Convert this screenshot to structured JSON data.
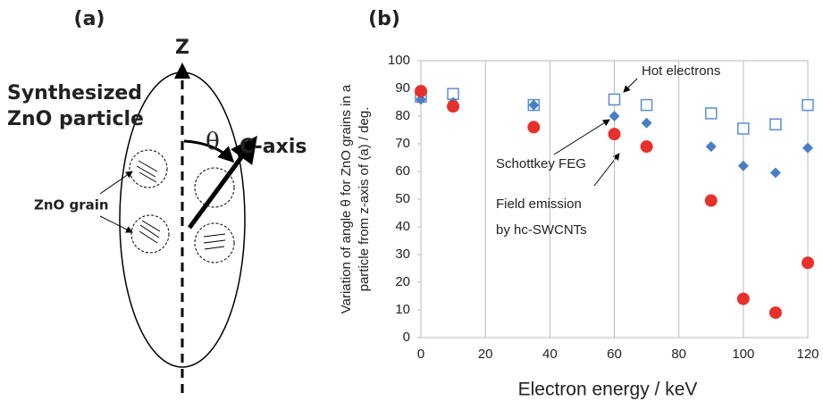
{
  "diagram": {
    "panel_label": "(a)",
    "z_label": "Z",
    "particle_label": [
      "Synthesized",
      "ZnO particle"
    ],
    "angle_label": "θ",
    "axis_label": "C-axis",
    "grain_label": "ZnO grain"
  },
  "chart_data": {
    "type": "scatter",
    "panel_label": "(b)",
    "xlabel": "Electron energy / keV",
    "ylabel": [
      "Variation of angle θ for ZnO grains in a",
      "particle from z-axis of (a) / deg."
    ],
    "x": [
      0,
      10,
      35,
      60,
      70,
      90,
      100,
      110,
      120
    ],
    "series": [
      {
        "name": "Hot electrons",
        "color": "#5b8fd0",
        "marker": "open-square",
        "values": [
          87,
          88,
          84,
          86,
          84,
          81,
          75.5,
          77,
          84
        ]
      },
      {
        "name": "Schottkey FEG",
        "color": "#4a7ec4",
        "marker": "diamond",
        "values": [
          86,
          85,
          84,
          80,
          77.5,
          69,
          62,
          59.5,
          68.5
        ]
      },
      {
        "name": [
          "Field emission",
          "by hc-SWCNTs"
        ],
        "color": "#e8302a",
        "marker": "circle",
        "values": [
          89,
          83.5,
          76,
          73.5,
          69,
          49.5,
          14,
          9,
          27
        ]
      }
    ],
    "xlim": [
      0,
      120
    ],
    "xticks": [
      0,
      20,
      40,
      60,
      80,
      100,
      120
    ],
    "ylim": [
      0,
      100
    ],
    "yticks": [
      0,
      10,
      20,
      30,
      40,
      50,
      60,
      70,
      80,
      90,
      100
    ],
    "grid": "x"
  }
}
